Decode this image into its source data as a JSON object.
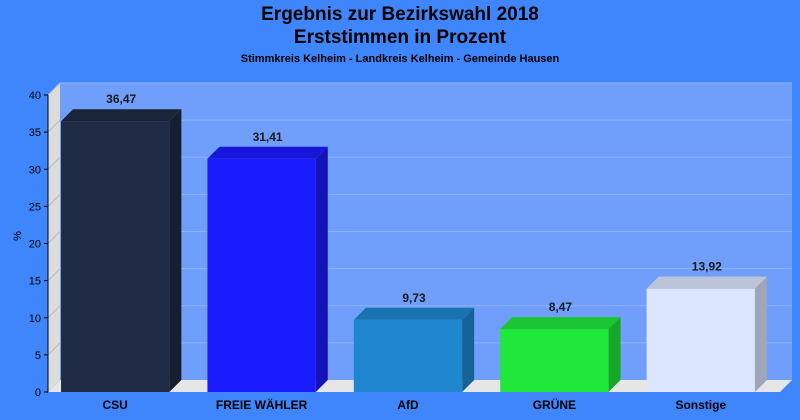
{
  "chart_data": {
    "type": "bar",
    "title": "Ergebnis zur Bezirkswahl 2018",
    "subtitle": "Erststimmen in Prozent",
    "subsubtitle": "Stimmkreis Kelheim - Landkreis Kelheim - Gemeinde Hausen",
    "ylabel": "%",
    "xlabel": "",
    "ylim": [
      0,
      40
    ],
    "yticks": [
      0,
      5,
      10,
      15,
      20,
      25,
      30,
      35,
      40
    ],
    "grid": true,
    "categories": [
      "CSU",
      "FREIE WÄHLER",
      "AfD",
      "GRÜNE",
      "Sonstige"
    ],
    "values": [
      36.47,
      31.41,
      9.73,
      8.47,
      13.92
    ],
    "value_labels": [
      "36,47",
      "31,41",
      "9,73",
      "8,47",
      "13,92"
    ],
    "colors": [
      "#1f2a44",
      "#1b1bff",
      "#1f87d0",
      "#1fe83a",
      "#dde6ff"
    ]
  },
  "colors": {
    "background": "#3f86fc",
    "plot_area": "#6f9ffb"
  }
}
